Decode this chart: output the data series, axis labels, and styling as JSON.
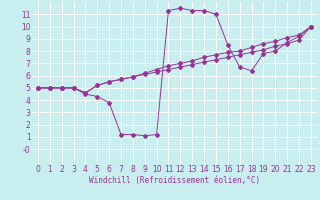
{
  "xlabel": "Windchill (Refroidissement éolien,°C)",
  "background_color": "#c8eef0",
  "grid_color": "#ffffff",
  "line_color": "#993399",
  "xlim": [
    -0.5,
    23.5
  ],
  "ylim": [
    -1.2,
    12.0
  ],
  "xticks": [
    0,
    1,
    2,
    3,
    4,
    5,
    6,
    7,
    8,
    9,
    10,
    11,
    12,
    13,
    14,
    15,
    16,
    17,
    18,
    19,
    20,
    21,
    22,
    23
  ],
  "yticks": [
    0,
    1,
    2,
    3,
    4,
    5,
    6,
    7,
    8,
    9,
    10,
    11
  ],
  "ytick_labels": [
    "-0",
    "1",
    "2",
    "3",
    "4",
    "5",
    "6",
    "7",
    "8",
    "9",
    "10",
    "11"
  ],
  "series1_x": [
    0,
    1,
    2,
    3,
    4,
    5,
    6,
    7,
    8,
    9,
    10,
    11,
    12,
    13,
    14,
    15,
    16,
    17,
    18,
    19,
    20,
    21,
    22,
    23
  ],
  "series1_y": [
    5.0,
    5.0,
    5.0,
    5.0,
    4.6,
    5.2,
    5.5,
    5.7,
    5.9,
    6.1,
    6.3,
    6.5,
    6.7,
    6.9,
    7.1,
    7.3,
    7.5,
    7.7,
    7.9,
    8.1,
    8.4,
    8.6,
    8.9,
    10.0
  ],
  "series2_x": [
    0,
    1,
    2,
    3,
    4,
    5,
    6,
    7,
    8,
    9,
    10,
    11,
    12,
    13,
    14,
    15,
    16,
    17,
    18,
    19,
    20,
    21,
    22,
    23
  ],
  "series2_y": [
    5.0,
    5.0,
    5.0,
    5.0,
    4.6,
    5.2,
    5.5,
    5.7,
    5.9,
    6.2,
    6.5,
    6.8,
    7.0,
    7.2,
    7.5,
    7.7,
    7.9,
    8.0,
    8.3,
    8.6,
    8.8,
    9.1,
    9.3,
    10.0
  ],
  "main_x": [
    0,
    1,
    2,
    3,
    4,
    5,
    6,
    7,
    8,
    9,
    10,
    11,
    12,
    13,
    14,
    15,
    16,
    17,
    18,
    19,
    20,
    21,
    22,
    23
  ],
  "main_y": [
    5.0,
    5.0,
    5.0,
    5.0,
    4.5,
    4.3,
    3.8,
    1.2,
    1.2,
    1.1,
    1.2,
    11.3,
    11.5,
    11.3,
    11.3,
    11.0,
    8.5,
    6.7,
    6.4,
    7.8,
    8.0,
    8.7,
    9.2,
    10.0
  ],
  "tick_fontsize": 5.5,
  "xlabel_fontsize": 5.5
}
